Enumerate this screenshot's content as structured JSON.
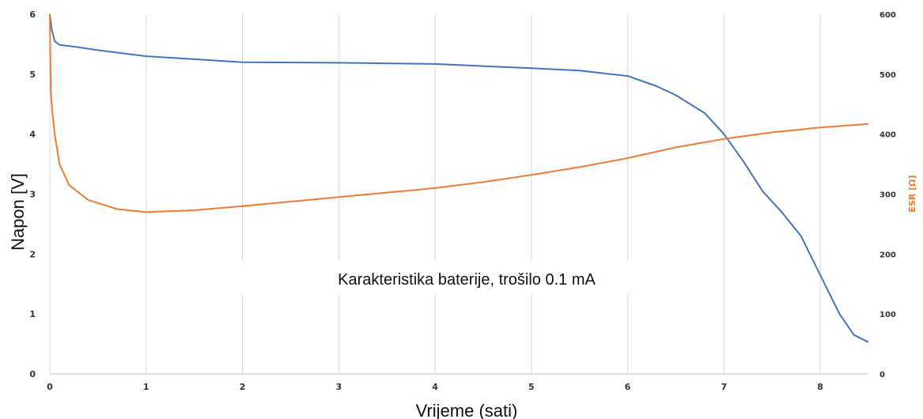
{
  "chart_data": {
    "type": "line",
    "title": "",
    "xlabel": "Vrijeme (sati)",
    "ylabel": "Napon [V]",
    "y2label": "ESR [Ω]",
    "annotation": "Karakteristika baterije, trošilo 0.1 mA",
    "xlim": [
      0,
      8.5
    ],
    "ylim": [
      0,
      6
    ],
    "y2lim": [
      0,
      600
    ],
    "x_ticks": [
      "0",
      "1",
      "2",
      "3",
      "4",
      "5",
      "6",
      "7",
      "8"
    ],
    "y_ticks": [
      "0",
      "1",
      "2",
      "3",
      "4",
      "5",
      "6"
    ],
    "y2_ticks": [
      "0",
      "100",
      "200",
      "300",
      "400",
      "500",
      "600"
    ],
    "grid": "vertical",
    "series": [
      {
        "axis": "left",
        "color": "#4472c4",
        "points": [
          [
            0,
            6.0
          ],
          [
            0.02,
            5.75
          ],
          [
            0.05,
            5.55
          ],
          [
            0.1,
            5.49
          ],
          [
            0.3,
            5.45
          ],
          [
            0.5,
            5.4
          ],
          [
            1.0,
            5.3
          ],
          [
            1.5,
            5.25
          ],
          [
            2.0,
            5.2
          ],
          [
            3.0,
            5.19
          ],
          [
            4.0,
            5.17
          ],
          [
            5.0,
            5.1
          ],
          [
            5.5,
            5.06
          ],
          [
            6.0,
            4.97
          ],
          [
            6.3,
            4.8
          ],
          [
            6.5,
            4.65
          ],
          [
            6.8,
            4.35
          ],
          [
            7.0,
            4.0
          ],
          [
            7.2,
            3.55
          ],
          [
            7.4,
            3.05
          ],
          [
            7.6,
            2.7
          ],
          [
            7.8,
            2.3
          ],
          [
            8.0,
            1.65
          ],
          [
            8.2,
            1.0
          ],
          [
            8.35,
            0.65
          ],
          [
            8.5,
            0.53
          ]
        ]
      },
      {
        "axis": "right",
        "color": "#ed7d31",
        "points": [
          [
            0,
            600
          ],
          [
            0.01,
            470
          ],
          [
            0.03,
            430
          ],
          [
            0.05,
            400
          ],
          [
            0.1,
            350
          ],
          [
            0.2,
            315
          ],
          [
            0.4,
            290
          ],
          [
            0.7,
            275
          ],
          [
            1.0,
            270
          ],
          [
            1.5,
            273
          ],
          [
            2.0,
            280
          ],
          [
            3.0,
            295
          ],
          [
            4.0,
            310
          ],
          [
            4.5,
            320
          ],
          [
            5.0,
            332
          ],
          [
            5.5,
            345
          ],
          [
            6.0,
            360
          ],
          [
            6.5,
            378
          ],
          [
            7.0,
            392
          ],
          [
            7.5,
            403
          ],
          [
            8.0,
            411
          ],
          [
            8.5,
            417
          ]
        ]
      }
    ]
  }
}
